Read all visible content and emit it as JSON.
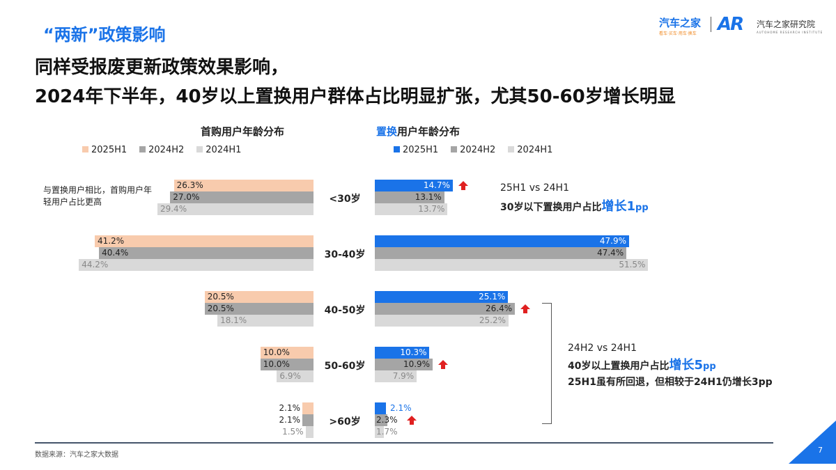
{
  "header": {
    "kicker": "“两新”政策影响",
    "headline1": "同样受报废更新政策效果影响，",
    "headline2": "2024年下半年，40岁以上置换用户群体占比明显扩张，尤其50-60岁增长明显"
  },
  "logo": {
    "brand": "汽车之家",
    "slogan": "看车·买车·用车·换车",
    "institute": "汽车之家研究院",
    "institute_en": "AUTOHOME RESEARCH INSTITUTE",
    "mark": "AR"
  },
  "chart_data": [
    {
      "type": "bar",
      "orientation": "horizontal",
      "title": "首购用户年龄分布",
      "categories": [
        "<30岁",
        "30-40岁",
        "40-50岁",
        "50-60岁",
        ">60岁"
      ],
      "series": [
        {
          "name": "2025H1",
          "values": [
            26.3,
            41.2,
            20.5,
            10.0,
            2.1
          ],
          "color": "#f8cbad"
        },
        {
          "name": "2024H2",
          "values": [
            27.0,
            40.4,
            20.5,
            10.0,
            2.1
          ],
          "color": "#a5a5a5"
        },
        {
          "name": "2024H1",
          "values": [
            29.4,
            44.2,
            18.1,
            6.9,
            1.5
          ],
          "color": "#d9d9d9"
        }
      ],
      "unit": "%"
    },
    {
      "type": "bar",
      "orientation": "horizontal",
      "title_highlight": "置换",
      "title_rest": "用户年龄分布",
      "categories": [
        "<30岁",
        "30-40岁",
        "40-50岁",
        "50-60岁",
        ">60岁"
      ],
      "series": [
        {
          "name": "2025H1",
          "values": [
            14.7,
            47.9,
            25.1,
            10.3,
            2.1
          ],
          "color": "#1a73e8"
        },
        {
          "name": "2024H2",
          "values": [
            13.1,
            47.4,
            26.4,
            10.9,
            2.3
          ],
          "color": "#a5a5a5"
        },
        {
          "name": "2024H1",
          "values": [
            13.7,
            51.5,
            25.2,
            7.9,
            1.7
          ],
          "color": "#d9d9d9"
        }
      ],
      "unit": "%",
      "up_arrows": [
        {
          "category": "<30岁",
          "series": "2025H1"
        },
        {
          "category": "40-50岁",
          "series": "2024H2"
        },
        {
          "category": "50-60岁",
          "series": "2024H2"
        },
        {
          "category": ">60岁",
          "series": "2024H2"
        }
      ]
    }
  ],
  "notes": {
    "left": "与置换用户相比，首购用户年轻用户占比更高",
    "a1_line1": "25H1 vs 24H1",
    "a1_pre": "30岁以下置换用户占比",
    "a1_hl": "增长1",
    "a1_unit": "pp",
    "a2_line1": "24H2 vs 24H1",
    "a2_pre": "40岁以上置换用户占比",
    "a2_hl": "增长5",
    "a2_unit": "pp",
    "a2_line3": "25H1虽有所回退，但相较于24H1仍增长3pp"
  },
  "footer": {
    "source": "数据来源：汽车之家大数据",
    "page": "7"
  },
  "colors": {
    "accent": "#1a73e8",
    "arrow": "#e02020"
  }
}
